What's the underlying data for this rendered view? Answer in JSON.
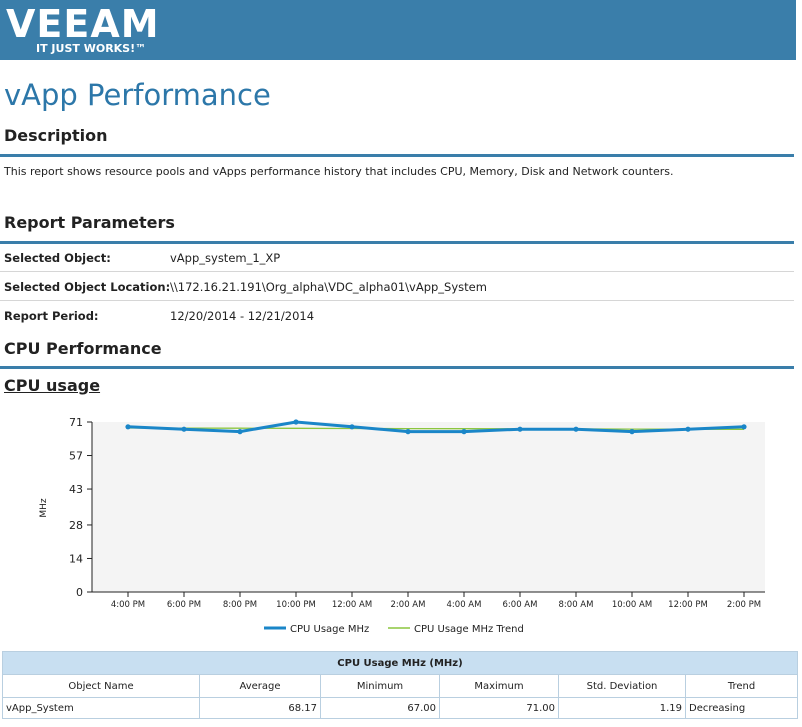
{
  "brand": {
    "logo_text": "VEEAM",
    "tagline": "IT JUST WORKS!™",
    "banner_color": "#3a7eaa"
  },
  "report": {
    "title": "vApp Performance",
    "description_heading": "Description",
    "description": "This report shows resource pools and vApps performance history that includes CPU, Memory, Disk and Network counters.",
    "params_heading": "Report Parameters",
    "params": [
      {
        "label": "Selected Object:",
        "value": "vApp_system_1_XP"
      },
      {
        "label": "Selected Object Location:",
        "value": "\\\\172.16.21.191\\Org_alpha\\VDC_alpha01\\vApp_System"
      },
      {
        "label": "Report Period:",
        "value": "12/20/2014 - 12/21/2014"
      }
    ],
    "cpu_heading": "CPU Performance",
    "cpu_sub_heading": "CPU usage"
  },
  "chart_data": {
    "type": "line",
    "title": "",
    "xlabel": "",
    "ylabel": "MHz",
    "ylim": [
      0,
      71
    ],
    "yticks": [
      "0",
      "14",
      "28",
      "43",
      "57",
      "71"
    ],
    "categories": [
      "4:00 PM",
      "6:00 PM",
      "8:00 PM",
      "10:00 PM",
      "12:00 AM",
      "2:00 AM",
      "4:00 AM",
      "6:00 AM",
      "8:00 AM",
      "10:00 AM",
      "12:00 PM",
      "2:00 PM"
    ],
    "series": [
      {
        "name": "CPU Usage MHz",
        "color": "#1a86c8",
        "values": [
          69,
          68,
          67,
          71,
          69,
          67,
          67,
          68,
          68,
          67,
          68,
          69
        ]
      },
      {
        "name": "CPU Usage MHz Trend",
        "color": "#8cc63f",
        "values": [
          68.5,
          68.45,
          68.4,
          68.35,
          68.3,
          68.25,
          68.2,
          68.15,
          68.1,
          68.05,
          68.0,
          67.95
        ]
      }
    ],
    "grid": false,
    "legend": "bottom-center"
  },
  "table": {
    "caption": "CPU Usage MHz (MHz)",
    "headers": [
      "Object Name",
      "Average",
      "Minimum",
      "Maximum",
      "Std. Deviation",
      "Trend"
    ],
    "rows": [
      [
        "vApp_System",
        "68.17",
        "67.00",
        "71.00",
        "1.19",
        "Decreasing"
      ]
    ]
  }
}
